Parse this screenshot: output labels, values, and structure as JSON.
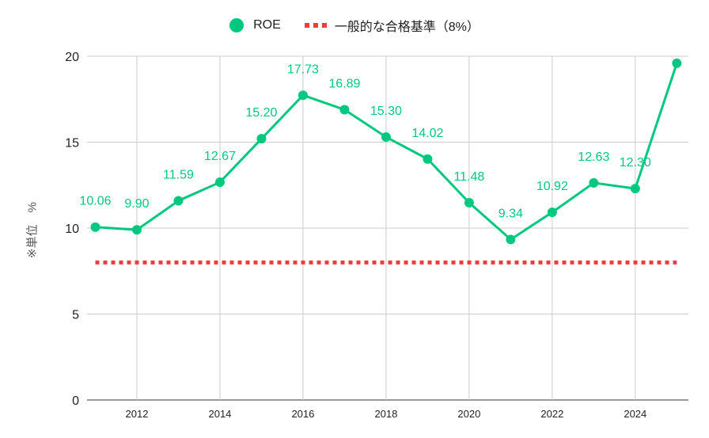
{
  "chart_data": {
    "type": "line",
    "title": "",
    "xlabel": "",
    "ylabel": "※単位　%",
    "x": [
      2011,
      2012,
      2013,
      2014,
      2015,
      2016,
      2017,
      2018,
      2019,
      2020,
      2021,
      2022,
      2023,
      2024,
      2025
    ],
    "series": [
      {
        "name": "ROE",
        "color": "#00c97f",
        "values": [
          10.06,
          9.9,
          11.59,
          12.67,
          15.2,
          17.73,
          16.89,
          15.3,
          14.02,
          11.48,
          9.34,
          10.92,
          12.63,
          12.3,
          19.59
        ],
        "labels": [
          "10.06",
          "9.90",
          "11.59",
          "12.67",
          "15.20",
          "17.73",
          "16.89",
          "15.30",
          "14.02",
          "11.48",
          "9.34",
          "10.92",
          "12.63",
          "12.30",
          ""
        ]
      },
      {
        "name": "一般的な合格基準（8%）",
        "color": "#f03c3c",
        "style": "dotted",
        "constant": 8
      }
    ],
    "xticks": [
      "2012",
      "2014",
      "2016",
      "2018",
      "2020",
      "2022",
      "2024"
    ],
    "yticks": [
      "0",
      "5",
      "10",
      "15",
      "20"
    ],
    "ylim": [
      0,
      20
    ],
    "xlim": [
      2010.8,
      2025.28
    ],
    "grid": true,
    "legend": "top-center"
  }
}
